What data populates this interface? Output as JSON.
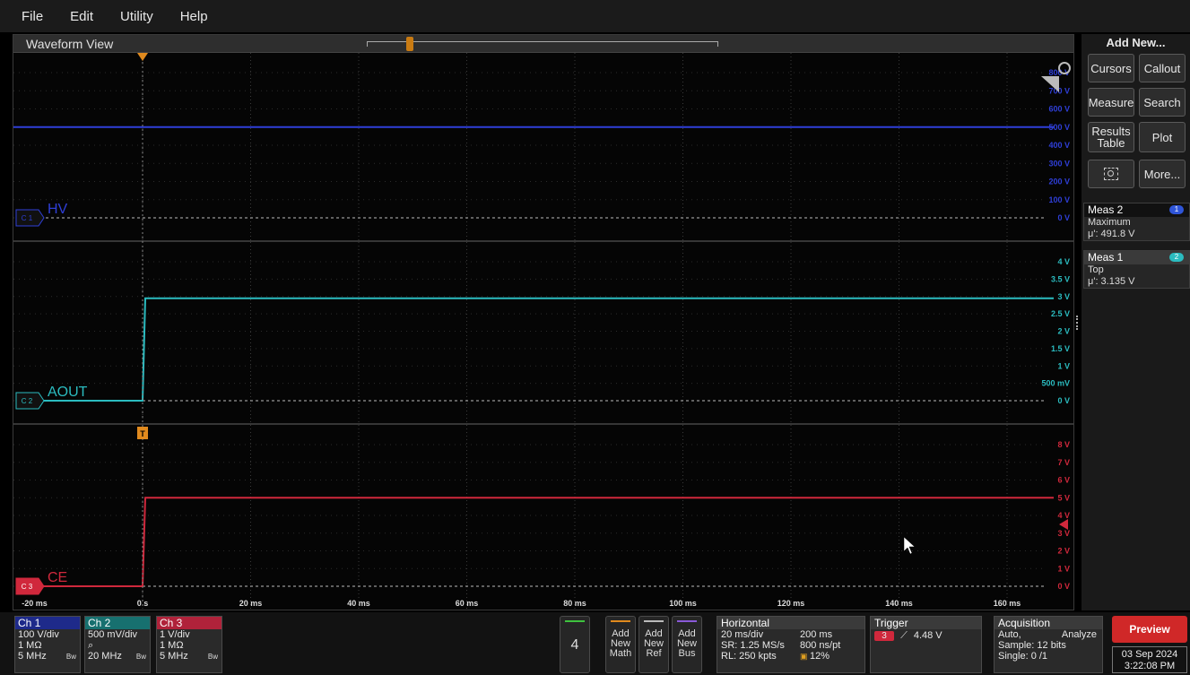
{
  "menu": [
    "File",
    "Edit",
    "Utility",
    "Help"
  ],
  "waveform_view": {
    "title": "Waveform View",
    "x_ticks": [
      "-20 ms",
      "0 s",
      "20 ms",
      "40 ms",
      "60 ms",
      "80 ms",
      "100 ms",
      "120 ms",
      "140 ms",
      "160 ms"
    ],
    "channels": [
      {
        "id": "C 1",
        "label": "HV",
        "color": "#2f3fd8",
        "y_ticks": [
          "800 V",
          "700 V",
          "600 V",
          "500 V",
          "400 V",
          "300 V",
          "200 V",
          "100 V",
          "0 V"
        ],
        "level_value": "500 V"
      },
      {
        "id": "C 2",
        "label": "AOUT",
        "color": "#2bbcc0",
        "y_ticks": [
          "4 V",
          "3.5 V",
          "3 V",
          "2.5 V",
          "2 V",
          "1.5 V",
          "1 V",
          "500 mV",
          "0 V"
        ],
        "level_value": "3 V"
      },
      {
        "id": "C 3",
        "label": "CE",
        "color": "#d0283c",
        "y_ticks": [
          "8 V",
          "7 V",
          "6 V",
          "5 V",
          "4 V",
          "3 V",
          "2 V",
          "1 V",
          "0 V"
        ],
        "level_value": "5 V"
      }
    ],
    "trigger_marker": "T"
  },
  "sidebar": {
    "title": "Add New...",
    "buttons": [
      "Cursors",
      "Callout",
      "Measure",
      "Search",
      "Results Table",
      "Plot",
      "More..."
    ],
    "measurements": [
      {
        "name": "Meas 2",
        "badge": "1",
        "badge_color": "#2f55d8",
        "type": "Maximum",
        "value": "μ': 491.8 V"
      },
      {
        "name": "Meas 1",
        "badge": "2",
        "badge_color": "#2bbcc0",
        "type": "Top",
        "value": "μ': 3.135 V"
      }
    ]
  },
  "bottom": {
    "channels": [
      {
        "name": "Ch 1",
        "head_color": "#1e2a8a",
        "scale": "100 V/div",
        "imp": "1 MΩ",
        "bw": "5 MHz",
        "bw_tag": "Bw"
      },
      {
        "name": "Ch 2",
        "head_color": "#17706f",
        "scale": "500 mV/div",
        "imp": "",
        "bw": "20 MHz",
        "bw_tag": "Bw"
      },
      {
        "name": "Ch 3",
        "head_color": "#b0223a",
        "scale": "1 V/div",
        "imp": "1 MΩ",
        "bw": "5 MHz",
        "bw_tag": "Bw"
      }
    ],
    "digital_count": "4",
    "add_buttons": [
      {
        "l1": "Add",
        "l2": "New",
        "l3": "Math",
        "color": "#e08a1e"
      },
      {
        "l1": "Add",
        "l2": "New",
        "l3": "Ref",
        "color": "#bbbbbb"
      },
      {
        "l1": "Add",
        "l2": "New",
        "l3": "Bus",
        "color": "#8a5ad8"
      }
    ],
    "horizontal": {
      "title": "Horizontal",
      "scale": "20 ms/div",
      "position": "200 ms",
      "sr": "SR: 1.25 MS/s",
      "res": "800 ns/pt",
      "rl": "RL: 250 kpts",
      "pct": "12%"
    },
    "trigger": {
      "title": "Trigger",
      "source": "3",
      "level": "4.48 V"
    },
    "acquisition": {
      "title": "Acquisition",
      "mode": "Auto,",
      "action": "Analyze",
      "sample": "Sample: 12 bits",
      "single": "Single: 0 /1"
    },
    "preview": "Preview",
    "date": "03 Sep 2024",
    "time": "3:22:08 PM"
  }
}
